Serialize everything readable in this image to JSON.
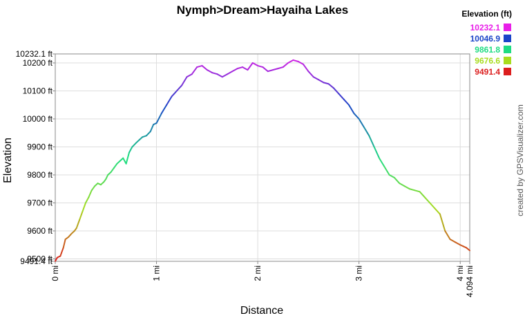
{
  "chart_data": {
    "type": "line",
    "title": "Nymph>Dream>Hayaiha Lakes",
    "xlabel": "Distance",
    "ylabel": "Elevation",
    "xlim": [
      0,
      4.094
    ],
    "ylim": [
      9491.4,
      10232.1
    ],
    "x_ticks": [
      {
        "value": 0,
        "label": "0 mi"
      },
      {
        "value": 1,
        "label": "1 mi"
      },
      {
        "value": 2,
        "label": "2 mi"
      },
      {
        "value": 3,
        "label": "3 mi"
      },
      {
        "value": 4,
        "label": "4 mi"
      },
      {
        "value": 4.094,
        "label": "4.094 mi"
      }
    ],
    "y_ticks": [
      {
        "value": 9491.4,
        "label": "9491.4 ft"
      },
      {
        "value": 9500,
        "label": "9500 ft"
      },
      {
        "value": 9600,
        "label": "9600 ft"
      },
      {
        "value": 9700,
        "label": "9700 ft"
      },
      {
        "value": 9800,
        "label": "9800 ft"
      },
      {
        "value": 9900,
        "label": "9900 ft"
      },
      {
        "value": 10000,
        "label": "10000 ft"
      },
      {
        "value": 10100,
        "label": "10100 ft"
      },
      {
        "value": 10200,
        "label": "10200 ft"
      },
      {
        "value": 10232.1,
        "label": "10232.1 ft"
      }
    ],
    "legend": {
      "title": "Elevation (ft)",
      "position": "top-right",
      "entries": [
        {
          "label": "10232.1",
          "color": "#e81ee8"
        },
        {
          "label": "10046.9",
          "color": "#1a44c8"
        },
        {
          "label": "9861.8",
          "color": "#1edc82"
        },
        {
          "label": "9676.6",
          "color": "#a8dc1e"
        },
        {
          "label": "9491.4",
          "color": "#dc1e1e"
        }
      ]
    },
    "grid": true,
    "series": [
      {
        "x": [
          0,
          0.02,
          0.05,
          0.08,
          0.1,
          0.13,
          0.16,
          0.19,
          0.21,
          0.24,
          0.27,
          0.3,
          0.33,
          0.36,
          0.39,
          0.42,
          0.45,
          0.48,
          0.5,
          0.52,
          0.55,
          0.58,
          0.61,
          0.64,
          0.67,
          0.7,
          0.73,
          0.76,
          0.8,
          0.83,
          0.86,
          0.9,
          0.94,
          0.97,
          1.0,
          1.05,
          1.1,
          1.15,
          1.2,
          1.25,
          1.3,
          1.35,
          1.4,
          1.45,
          1.5,
          1.55,
          1.6,
          1.65,
          1.7,
          1.75,
          1.8,
          1.85,
          1.9,
          1.95,
          2.0,
          2.05,
          2.1,
          2.15,
          2.2,
          2.25,
          2.3,
          2.35,
          2.4,
          2.45,
          2.5,
          2.55,
          2.6,
          2.65,
          2.7,
          2.75,
          2.8,
          2.85,
          2.9,
          2.95,
          3.0,
          3.05,
          3.1,
          3.15,
          3.2,
          3.25,
          3.3,
          3.35,
          3.4,
          3.45,
          3.5,
          3.55,
          3.6,
          3.65,
          3.7,
          3.75,
          3.8,
          3.85,
          3.9,
          3.95,
          4.0,
          4.03,
          4.06,
          4.094
        ],
        "y": [
          9492,
          9505,
          9510,
          9540,
          9570,
          9578,
          9590,
          9600,
          9610,
          9640,
          9670,
          9700,
          9720,
          9745,
          9760,
          9770,
          9765,
          9775,
          9785,
          9800,
          9810,
          9825,
          9840,
          9850,
          9860,
          9840,
          9880,
          9900,
          9915,
          9925,
          9935,
          9940,
          9955,
          9980,
          9985,
          10020,
          10050,
          10080,
          10100,
          10120,
          10150,
          10160,
          10185,
          10190,
          10175,
          10165,
          10160,
          10150,
          10160,
          10170,
          10180,
          10185,
          10175,
          10200,
          10190,
          10185,
          10170,
          10175,
          10180,
          10185,
          10200,
          10210,
          10205,
          10195,
          10170,
          10150,
          10140,
          10130,
          10125,
          10110,
          10090,
          10070,
          10050,
          10020,
          10000,
          9970,
          9940,
          9900,
          9860,
          9830,
          9800,
          9790,
          9770,
          9760,
          9750,
          9745,
          9740,
          9720,
          9700,
          9680,
          9660,
          9600,
          9570,
          9560,
          9550,
          9545,
          9540,
          9530
        ]
      }
    ]
  },
  "credit": "created by GPSVisualizer.com"
}
